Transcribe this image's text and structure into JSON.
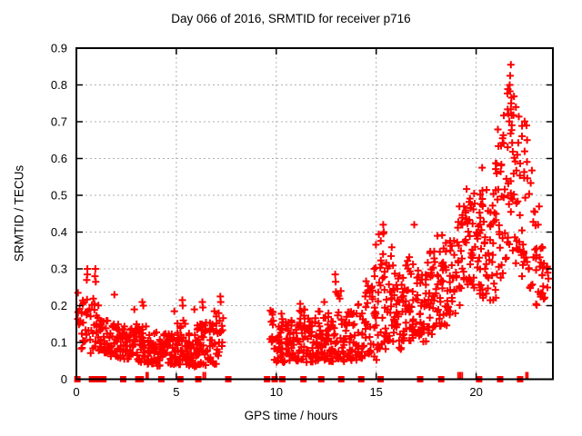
{
  "title": "Day 066 of 2016, SRMTID for receiver p716",
  "colors": {
    "marker": "#ff0000",
    "grid": "#b0b0b0",
    "axis": "#000000",
    "background": "#ffffff",
    "text": "#000000"
  },
  "chart_data": {
    "type": "scatter",
    "title": "Day 066 of 2016, SRMTID for receiver p716",
    "xlabel": "GPS time / hours",
    "ylabel": "SRMTID / TECUs",
    "xlim": [
      0,
      23.84
    ],
    "ylim": [
      0,
      0.9
    ],
    "xticks": [
      0,
      5,
      10,
      15,
      20
    ],
    "yticks": [
      0,
      0.1,
      0.2,
      0.3,
      0.4,
      0.5,
      0.6,
      0.7,
      0.8,
      0.9
    ],
    "grid": true,
    "legend": false,
    "marker": "plus",
    "marker_color": "#ff0000",
    "series": [
      {
        "name": "SRMTID",
        "description": "Dense scatter of + markers; envelope bins as [x_start,x_end,count,y_min,y_max,skew]",
        "bins": [
          [
            0.05,
            0.3,
            14,
            0.08,
            0.26,
            1.2
          ],
          [
            0.3,
            0.7,
            16,
            0.1,
            0.24,
            1.2
          ],
          [
            0.7,
            1.1,
            18,
            0.07,
            0.22,
            1.2
          ],
          [
            1.1,
            1.5,
            22,
            0.07,
            0.17,
            1.1
          ],
          [
            1.5,
            2.0,
            30,
            0.06,
            0.16,
            1.2
          ],
          [
            2.0,
            2.5,
            32,
            0.055,
            0.15,
            1.2
          ],
          [
            2.5,
            3.0,
            32,
            0.05,
            0.14,
            1.2
          ],
          [
            3.0,
            3.5,
            34,
            0.045,
            0.155,
            1.3
          ],
          [
            3.5,
            4.0,
            30,
            0.04,
            0.125,
            1.2
          ],
          [
            4.0,
            4.5,
            30,
            0.035,
            0.13,
            1.3
          ],
          [
            4.5,
            5.0,
            30,
            0.04,
            0.125,
            1.2
          ],
          [
            5.0,
            5.5,
            34,
            0.04,
            0.17,
            1.4
          ],
          [
            5.5,
            6.0,
            34,
            0.03,
            0.14,
            1.3
          ],
          [
            6.0,
            6.5,
            34,
            0.035,
            0.15,
            1.3
          ],
          [
            6.5,
            7.0,
            28,
            0.04,
            0.16,
            1.3
          ],
          [
            7.0,
            7.35,
            18,
            0.05,
            0.19,
            1.2
          ],
          [
            9.7,
            10.0,
            16,
            0.05,
            0.19,
            1.1
          ],
          [
            10.0,
            10.5,
            32,
            0.045,
            0.18,
            1.3
          ],
          [
            10.5,
            11.0,
            34,
            0.045,
            0.16,
            1.2
          ],
          [
            11.0,
            11.5,
            34,
            0.05,
            0.19,
            1.3
          ],
          [
            11.5,
            12.0,
            34,
            0.045,
            0.17,
            1.2
          ],
          [
            12.0,
            12.5,
            34,
            0.05,
            0.2,
            1.3
          ],
          [
            12.5,
            13.0,
            34,
            0.045,
            0.18,
            1.2
          ],
          [
            13.0,
            13.35,
            24,
            0.05,
            0.24,
            1.3
          ],
          [
            13.35,
            14.0,
            40,
            0.045,
            0.19,
            1.2
          ],
          [
            14.0,
            14.5,
            30,
            0.05,
            0.21,
            1.2
          ],
          [
            14.5,
            15.0,
            30,
            0.05,
            0.27,
            1.3
          ],
          [
            15.0,
            15.5,
            34,
            0.08,
            0.4,
            1.5
          ],
          [
            15.5,
            16.0,
            38,
            0.1,
            0.38,
            1.4
          ],
          [
            16.0,
            16.5,
            34,
            0.08,
            0.29,
            1.2
          ],
          [
            16.5,
            17.0,
            34,
            0.1,
            0.34,
            1.3
          ],
          [
            17.0,
            17.5,
            30,
            0.1,
            0.3,
            1.2
          ],
          [
            17.5,
            18.0,
            34,
            0.12,
            0.35,
            1.2
          ],
          [
            18.0,
            18.5,
            34,
            0.14,
            0.4,
            1.2
          ],
          [
            18.5,
            19.0,
            30,
            0.17,
            0.38,
            1.1
          ],
          [
            19.0,
            19.5,
            32,
            0.2,
            0.48,
            1.1
          ],
          [
            19.5,
            20.0,
            34,
            0.24,
            0.52,
            1.0
          ],
          [
            20.0,
            20.5,
            34,
            0.22,
            0.52,
            1.1
          ],
          [
            20.5,
            21.0,
            30,
            0.2,
            0.52,
            1.1
          ],
          [
            21.0,
            21.5,
            34,
            0.25,
            0.72,
            1.0
          ],
          [
            21.5,
            22.0,
            40,
            0.32,
            0.82,
            0.8
          ],
          [
            22.0,
            22.5,
            30,
            0.28,
            0.72,
            1.1
          ],
          [
            22.5,
            23.0,
            20,
            0.22,
            0.6,
            1.1
          ],
          [
            23.0,
            23.45,
            24,
            0.2,
            0.36,
            1.0
          ],
          [
            23.45,
            23.65,
            6,
            0.24,
            0.33,
            1.0
          ]
        ],
        "spikes": [
          [
            0.55,
            0.3
          ],
          [
            0.55,
            0.285
          ],
          [
            0.52,
            0.27
          ],
          [
            0.95,
            0.3
          ],
          [
            0.93,
            0.28
          ],
          [
            0.97,
            0.265
          ],
          [
            1.9,
            0.23
          ],
          [
            2.9,
            0.19
          ],
          [
            3.3,
            0.21
          ],
          [
            3.35,
            0.2
          ],
          [
            4.9,
            0.185
          ],
          [
            5.3,
            0.215
          ],
          [
            5.32,
            0.2
          ],
          [
            5.9,
            0.19
          ],
          [
            6.3,
            0.21
          ],
          [
            6.33,
            0.195
          ],
          [
            6.9,
            0.185
          ],
          [
            7.2,
            0.225
          ],
          [
            7.22,
            0.21
          ],
          [
            11.2,
            0.205
          ],
          [
            12.4,
            0.21
          ],
          [
            12.95,
            0.285
          ],
          [
            12.97,
            0.265
          ],
          [
            14.45,
            0.225
          ],
          [
            14.9,
            0.3
          ],
          [
            14.92,
            0.28
          ],
          [
            15.35,
            0.42
          ],
          [
            15.38,
            0.4
          ],
          [
            16.9,
            0.42
          ],
          [
            20.3,
            0.575
          ],
          [
            21.74,
            0.855
          ],
          [
            21.7,
            0.825
          ],
          [
            21.68,
            0.8
          ],
          [
            23.1,
            0.42
          ],
          [
            23.15,
            0.47
          ],
          [
            22.55,
            0.65
          ],
          [
            22.52,
            0.69
          ]
        ],
        "zero_squares": [
          0.05,
          0.78,
          1.05,
          1.35,
          2.34,
          3.1,
          3.22,
          4.25,
          5.2,
          6.1,
          7.6,
          9.54,
          9.92,
          10.3,
          11.36,
          12.25,
          13.25,
          14.25,
          15.22,
          17.2,
          18.25,
          20.15,
          21.2,
          22.2
        ],
        "zero_bars": [
          3.5,
          3.58,
          6.35,
          6.45,
          19.1,
          19.2,
          19.3,
          22.5,
          22.58
        ]
      }
    ]
  }
}
